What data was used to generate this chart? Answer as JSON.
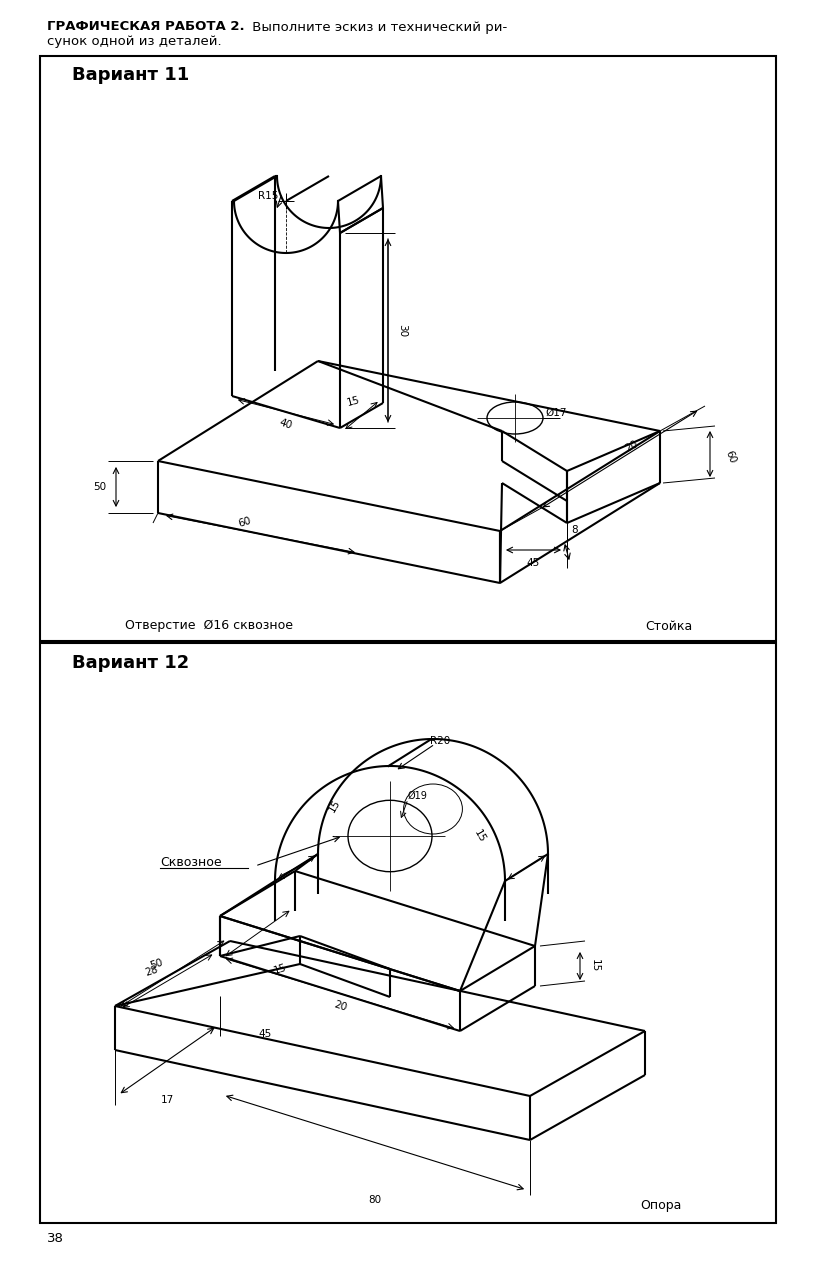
{
  "page_bg": "#ffffff",
  "header_bold": "ГРАФИЧЕСКАЯ РАБОТА 2.",
  "header_normal": " Выполните эскиз и технический ри-",
  "header_line2": "сунок одной из деталей.",
  "page_number": "38",
  "variant1_title": "Вариант 11",
  "variant1_label1": "Отверстие  Ø16 сквозное",
  "variant1_label2": "Стойка",
  "variant2_title": "Вариант 12",
  "variant2_label1": "Сквозное",
  "variant2_label2": "Опора",
  "line_color": "#000000",
  "thin_lw": 0.7,
  "thick_lw": 1.5,
  "medium_lw": 1.0
}
